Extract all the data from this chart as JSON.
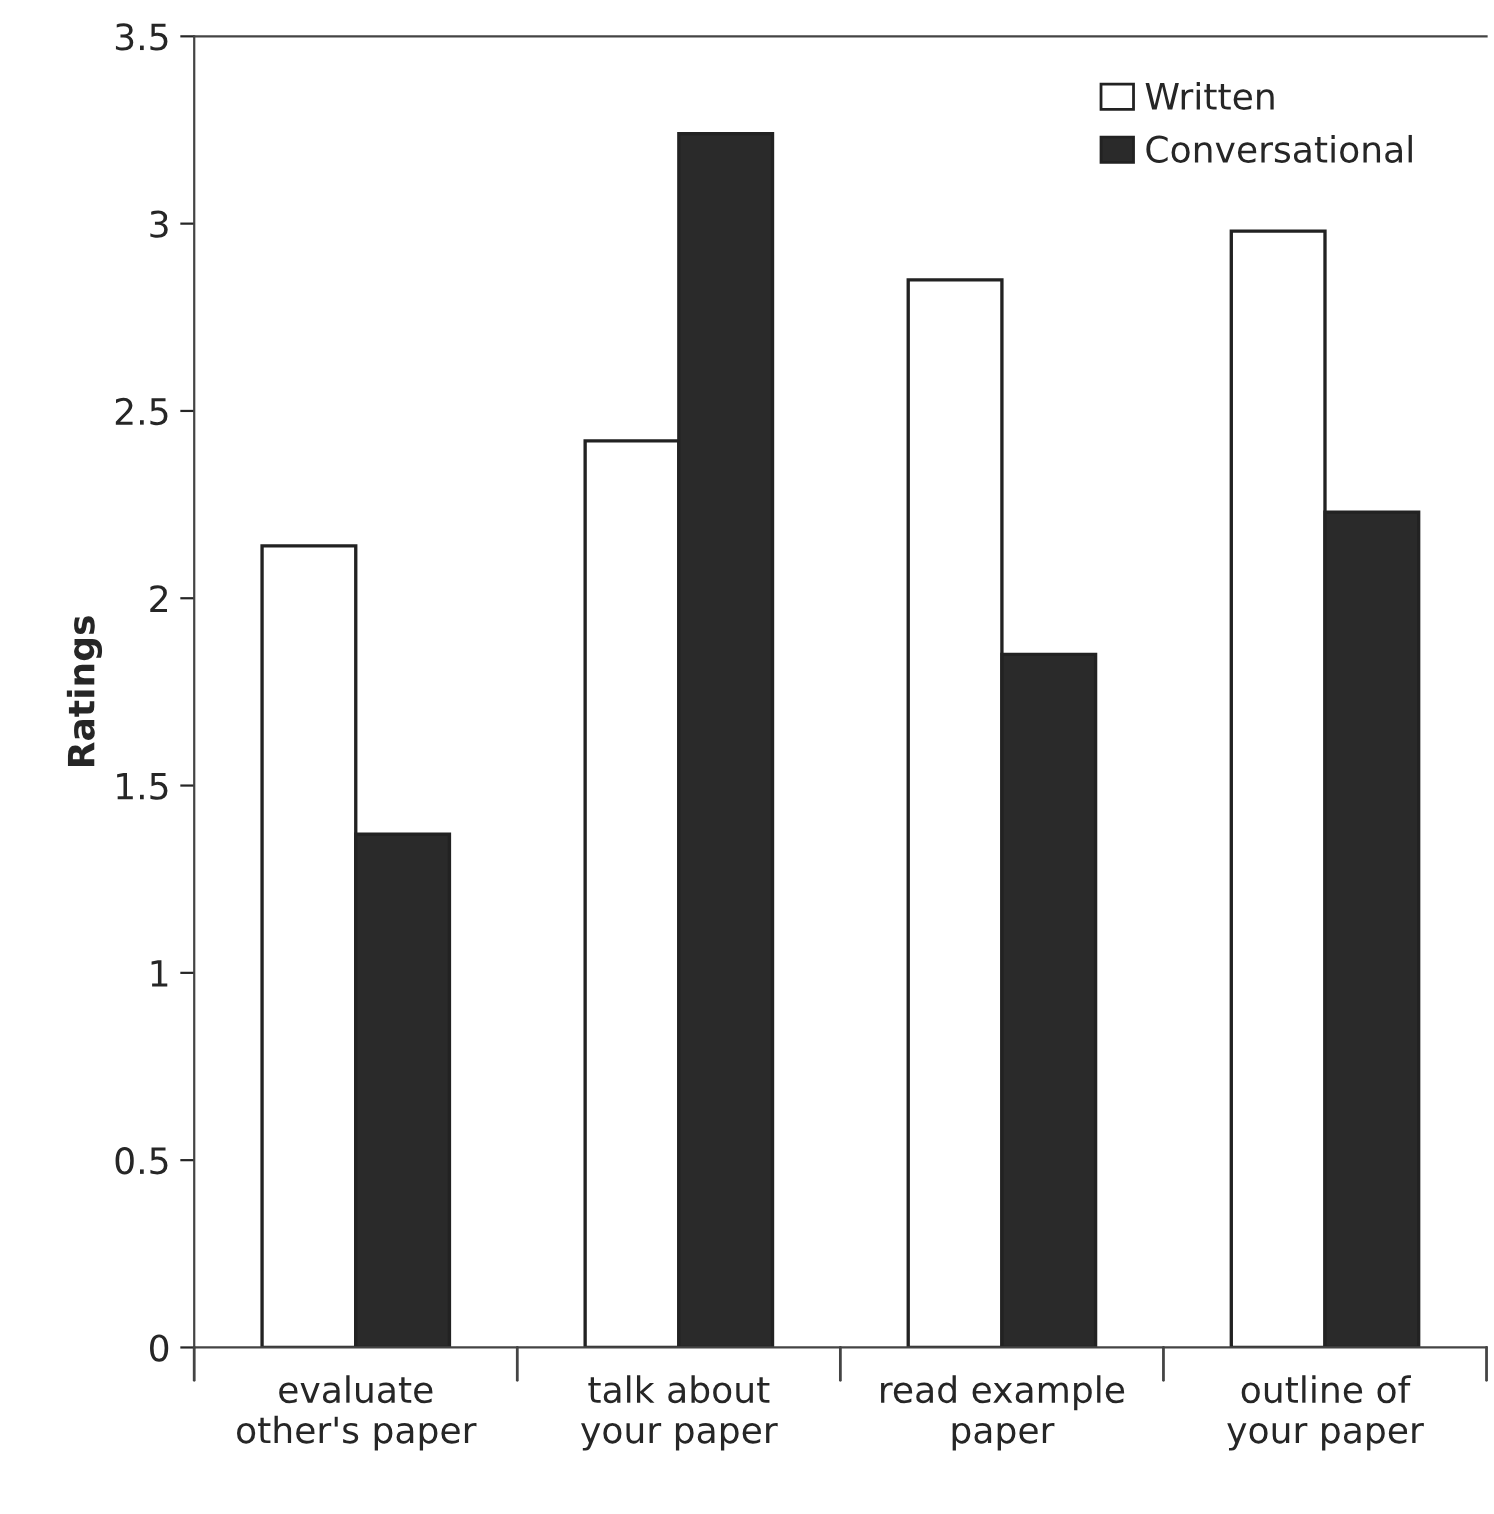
{
  "chart_data": {
    "type": "bar",
    "ylabel": "Ratings",
    "categories": [
      "evaluate\nother's paper",
      "talk about\nyour paper",
      "read example\npaper",
      "outline of\nyour paper"
    ],
    "series": [
      {
        "name": "Written",
        "color": "#ffffff",
        "values": [
          2.14,
          2.42,
          2.85,
          2.98
        ]
      },
      {
        "name": "Conversational",
        "color": "#2a2a2a",
        "values": [
          1.37,
          3.24,
          1.85,
          2.23
        ]
      }
    ],
    "ylim": [
      0,
      3.5
    ],
    "yticks": [
      0,
      0.5,
      1,
      1.5,
      2,
      2.5,
      3,
      3.5
    ],
    "grid": false,
    "legend": "top right"
  }
}
